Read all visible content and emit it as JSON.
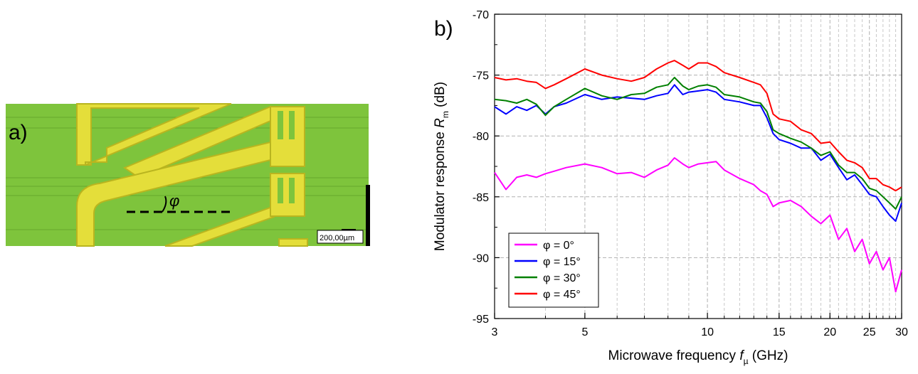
{
  "panel_a": {
    "label": "a)",
    "angle_symbol": "φ",
    "scale_bar_label": "200,00µm",
    "colors": {
      "substrate": "#7ec43c",
      "metal": "#e4de3a",
      "metal_edge": "#b9b51f"
    }
  },
  "panel_b": {
    "label": "b)"
  },
  "chart_data": {
    "type": "line",
    "x_scale": "log",
    "xlim": [
      3,
      30
    ],
    "ylim": [
      -95,
      -70
    ],
    "xticks": [
      3,
      5,
      10,
      15,
      20,
      25,
      30
    ],
    "xtick_labels": [
      "3",
      "5",
      "10",
      "15",
      "20",
      "25",
      "30"
    ],
    "yticks": [
      -95,
      -90,
      -85,
      -80,
      -75,
      -70
    ],
    "ytick_labels": [
      "-95",
      "-90",
      "-85",
      "-80",
      "-75",
      "-70"
    ],
    "xlabel": {
      "main": "Microwave frequency ",
      "var": "f",
      "sub": "µ",
      "unit": " (GHz)"
    },
    "ylabel": {
      "main": "Modulator response ",
      "var": "R",
      "sub": "m",
      "unit": " (dB)"
    },
    "grid": "minor dashed vertical + major dashed horizontal",
    "legend_position": "bottom-left",
    "x": [
      3,
      3.2,
      3.4,
      3.6,
      3.8,
      4,
      4.2,
      4.5,
      5,
      5.5,
      6,
      6.5,
      7,
      7.5,
      8,
      8.3,
      8.7,
      9,
      9.5,
      10,
      10.5,
      11,
      12,
      13,
      13.5,
      14,
      14.5,
      15,
      16,
      17,
      18,
      19,
      20,
      21,
      22,
      23,
      24,
      25,
      26,
      27,
      28,
      29,
      30
    ],
    "series": [
      {
        "name": "φ = 0°",
        "color": "#ff00ff",
        "values": [
          -83,
          -84.4,
          -83.4,
          -83.2,
          -83.4,
          -83.1,
          -82.9,
          -82.6,
          -82.3,
          -82.6,
          -83.1,
          -83,
          -83.4,
          -82.8,
          -82.4,
          -81.8,
          -82.3,
          -82.6,
          -82.3,
          -82.2,
          -82.1,
          -82.8,
          -83.5,
          -84,
          -84.5,
          -84.8,
          -85.8,
          -85.5,
          -85.3,
          -85.8,
          -86.6,
          -87.2,
          -86.5,
          -88.5,
          -87.6,
          -89.5,
          -88.5,
          -90.5,
          -89.5,
          -91,
          -90,
          -92.8,
          -91
        ]
      },
      {
        "name": "φ = 15°",
        "color": "#0000ff",
        "values": [
          -77.6,
          -78.2,
          -77.6,
          -77.9,
          -77.5,
          -78.2,
          -77.6,
          -77.3,
          -76.6,
          -77,
          -76.8,
          -76.9,
          -77,
          -76.7,
          -76.5,
          -75.8,
          -76.6,
          -76.4,
          -76.3,
          -76.2,
          -76.4,
          -77,
          -77.2,
          -77.5,
          -77.5,
          -78.5,
          -79.8,
          -80.3,
          -80.6,
          -81,
          -81,
          -82,
          -81.5,
          -82.6,
          -83.6,
          -83.2,
          -84,
          -84.8,
          -85,
          -85.8,
          -86.5,
          -87,
          -85.5
        ]
      },
      {
        "name": "φ = 30°",
        "color": "#008000",
        "values": [
          -77,
          -77.1,
          -77.3,
          -77,
          -77.4,
          -78.3,
          -77.6,
          -77,
          -76.1,
          -76.7,
          -77,
          -76.6,
          -76.5,
          -76,
          -75.8,
          -75.2,
          -75.9,
          -76.2,
          -75.9,
          -75.8,
          -76,
          -76.6,
          -76.8,
          -77.2,
          -77.3,
          -78,
          -79.5,
          -79.8,
          -80.2,
          -80.5,
          -81,
          -81.6,
          -81.3,
          -82.4,
          -83,
          -83,
          -83.5,
          -84.3,
          -84.5,
          -85,
          -85.5,
          -86,
          -85
        ]
      },
      {
        "name": "φ = 45°",
        "color": "#ff0000",
        "values": [
          -75.2,
          -75.4,
          -75.3,
          -75.5,
          -75.6,
          -76.1,
          -75.8,
          -75.3,
          -74.5,
          -75,
          -75.3,
          -75.5,
          -75.2,
          -74.5,
          -74,
          -73.8,
          -74.2,
          -74.5,
          -74,
          -74,
          -74.3,
          -74.8,
          -75.2,
          -75.6,
          -75.8,
          -76.5,
          -78.2,
          -78.6,
          -78.8,
          -79.5,
          -79.8,
          -80.6,
          -80.5,
          -81.3,
          -82,
          -82.2,
          -82.6,
          -83.5,
          -83.5,
          -84,
          -84.2,
          -84.5,
          -84.2
        ]
      }
    ]
  }
}
